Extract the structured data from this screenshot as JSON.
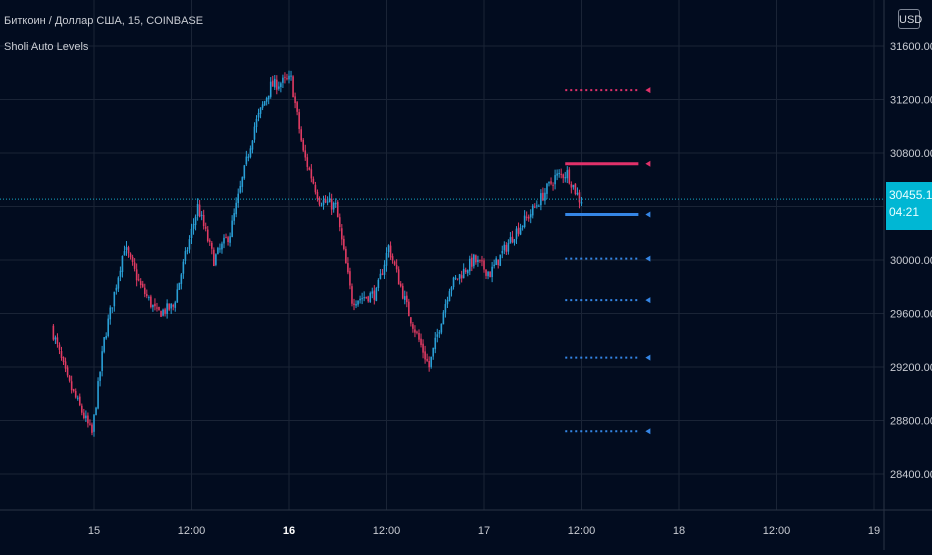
{
  "header": {
    "symbol": "Биткоин / Доллар США, 15, COINBASE",
    "indicator": "Sholi Auto Levels",
    "currency": "USD"
  },
  "last_price": {
    "price": "30455.11",
    "countdown": "04:21"
  },
  "colors": {
    "background": "#020c1f",
    "grid": "#1a2436",
    "up": "#2a9fd6",
    "down": "#e13b63",
    "resistance": "#e1316a",
    "support": "#3586e6",
    "price_line": "#17a9c8",
    "axis_text": "#c9ccd3"
  },
  "chart_data": {
    "type": "candlestick",
    "title": "Биткоин / Доллар США, 15, COINBASE",
    "xlabel": "",
    "ylabel": "",
    "ylim": [
      28200,
      31800
    ],
    "y_ticks": [
      28400,
      28800,
      29200,
      29600,
      30000,
      30400,
      30800,
      31200,
      31600
    ],
    "y_tick_labels": [
      "28400.00",
      "28800.00",
      "29200.00",
      "29600.00",
      "30000.00",
      "30400.00",
      "30800.00",
      "31200.00",
      "31600.00"
    ],
    "x_ticks": [
      "15",
      "12:00",
      "16",
      "12:00",
      "17",
      "12:00",
      "18",
      "12:00",
      "19"
    ],
    "grid": true,
    "series": [
      {
        "type": "candlestick",
        "anchors": [
          [
            "14 19:00",
            29500
          ],
          [
            "14 21:00",
            29100
          ],
          [
            "15 00:00",
            28700
          ],
          [
            "15 01:30",
            29400
          ],
          [
            "15 04:00",
            30100
          ],
          [
            "15 06:00",
            29800
          ],
          [
            "15 08:00",
            29600
          ],
          [
            "15 10:00",
            29650
          ],
          [
            "15 13:00",
            30400
          ],
          [
            "15 15:00",
            30000
          ],
          [
            "15 17:00",
            30200
          ],
          [
            "15 20:00",
            31000
          ],
          [
            "15 22:00",
            31300
          ],
          [
            "16 00:30",
            31350
          ],
          [
            "16 02:00",
            30800
          ],
          [
            "16 04:00",
            30450
          ],
          [
            "16 06:00",
            30400
          ],
          [
            "16 08:00",
            29700
          ],
          [
            "16 11:00",
            29750
          ],
          [
            "16 12:30",
            30100
          ],
          [
            "16 15:00",
            29600
          ],
          [
            "16 17:30",
            29200
          ],
          [
            "16 20:00",
            29800
          ],
          [
            "16 23:00",
            30000
          ],
          [
            "17 01:00",
            29900
          ],
          [
            "17 04:00",
            30200
          ],
          [
            "17 06:00",
            30350
          ],
          [
            "17 09:00",
            30620
          ],
          [
            "17 10:30",
            30650
          ],
          [
            "17 12:00",
            30455
          ]
        ]
      }
    ],
    "levels": [
      {
        "price": 31270,
        "color": "resistance",
        "style": "dotted",
        "from": "17 10:00",
        "to": "17 19:00"
      },
      {
        "price": 30720,
        "color": "resistance",
        "style": "solid",
        "from": "17 10:00",
        "to": "17 19:00"
      },
      {
        "price": 30340,
        "color": "support",
        "style": "solid",
        "from": "17 10:00",
        "to": "17 19:00"
      },
      {
        "price": 30010,
        "color": "support",
        "style": "dotted",
        "from": "17 10:00",
        "to": "17 19:00"
      },
      {
        "price": 29700,
        "color": "support",
        "style": "dotted",
        "from": "17 10:00",
        "to": "17 19:00"
      },
      {
        "price": 29270,
        "color": "support",
        "style": "dotted",
        "from": "17 10:00",
        "to": "17 19:00"
      },
      {
        "price": 28720,
        "color": "support",
        "style": "dotted",
        "from": "17 10:00",
        "to": "17 19:00"
      }
    ],
    "last_price": 30455.11
  }
}
